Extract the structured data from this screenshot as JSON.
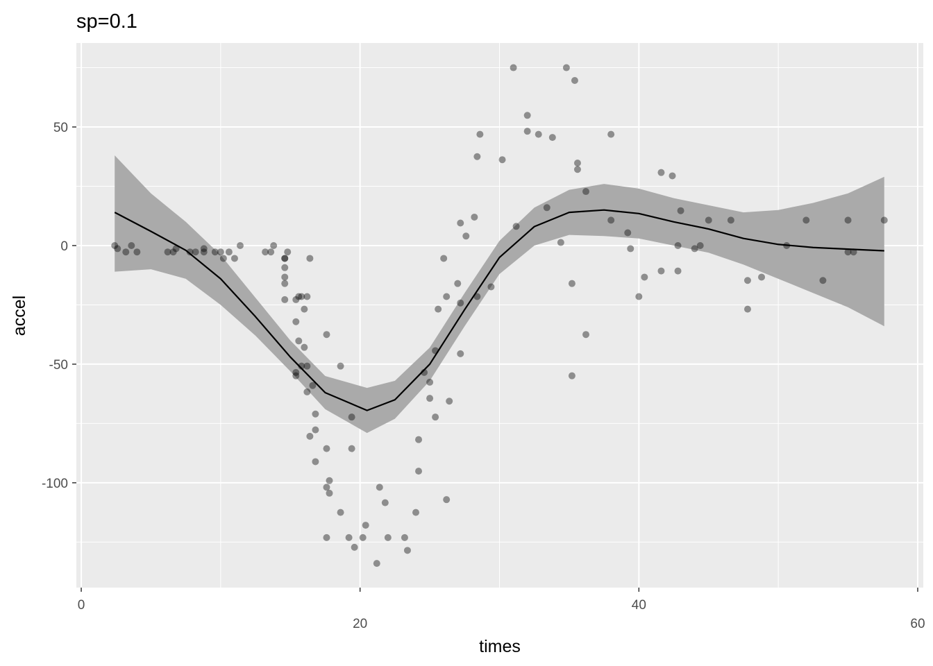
{
  "chart_data": {
    "type": "scatter",
    "title": "sp=0.1",
    "xlabel": "times",
    "ylabel": "accel",
    "xlim": [
      -0.35,
      60.4
    ],
    "ylim": [
      -144.2,
      85.4
    ],
    "xticks": [
      0,
      20,
      40,
      60
    ],
    "yticks": [
      -100,
      -50,
      0,
      50
    ],
    "xminor": [
      10,
      30,
      50
    ],
    "yminor": [
      -125,
      -75,
      -25,
      25,
      75
    ],
    "grid": true,
    "x_label_dodge": 2,
    "point_color": "#000000",
    "line_color": "#000000",
    "band_color": "#aaaaaa",
    "x": [
      2.4,
      2.6,
      3.2,
      3.6,
      4.0,
      6.2,
      6.6,
      6.8,
      7.8,
      8.2,
      8.8,
      8.8,
      9.6,
      10.0,
      10.2,
      10.6,
      11.0,
      11.4,
      13.2,
      13.6,
      13.8,
      14.6,
      14.6,
      14.6,
      14.6,
      14.6,
      14.6,
      14.8,
      15.4,
      15.4,
      15.4,
      15.4,
      15.6,
      15.6,
      15.8,
      15.8,
      16.0,
      16.0,
      16.2,
      16.2,
      16.2,
      16.4,
      16.4,
      16.6,
      16.8,
      16.8,
      16.8,
      17.6,
      17.6,
      17.6,
      17.6,
      17.8,
      17.8,
      18.6,
      18.6,
      19.2,
      19.4,
      19.4,
      19.6,
      20.2,
      20.4,
      21.2,
      21.4,
      21.8,
      22.0,
      23.2,
      23.4,
      24.0,
      24.2,
      24.2,
      24.6,
      25.0,
      25.0,
      25.4,
      25.4,
      25.6,
      26.0,
      26.2,
      26.2,
      26.4,
      27.0,
      27.2,
      27.2,
      27.2,
      27.6,
      28.2,
      28.4,
      28.4,
      28.6,
      29.4,
      30.2,
      31.0,
      31.2,
      32.0,
      32.0,
      32.8,
      33.4,
      33.8,
      34.4,
      34.8,
      35.2,
      35.2,
      35.4,
      35.6,
      35.6,
      36.2,
      36.2,
      38.0,
      38.0,
      39.2,
      39.4,
      40.0,
      40.4,
      41.6,
      41.6,
      42.4,
      42.8,
      42.8,
      43.0,
      44.0,
      44.4,
      45.0,
      46.6,
      47.8,
      47.8,
      48.8,
      50.6,
      52.0,
      53.2,
      55.0,
      55.0,
      55.4,
      57.6
    ],
    "values": [
      0,
      -1.3,
      -2.7,
      0,
      -2.7,
      -2.7,
      -2.7,
      -1.3,
      -2.7,
      -2.7,
      -1.3,
      -2.7,
      -2.7,
      -2.7,
      -5.4,
      -2.7,
      -5.4,
      0,
      -2.7,
      -2.7,
      0,
      -13.3,
      -5.4,
      -5.4,
      -9.3,
      -16,
      -22.8,
      -2.7,
      -22.8,
      -32.1,
      -53.5,
      -54.9,
      -40.2,
      -21.5,
      -21.5,
      -50.8,
      -42.9,
      -26.8,
      -21.5,
      -50.8,
      -61.7,
      -5.4,
      -80.4,
      -59,
      -71,
      -91.1,
      -77.7,
      -37.5,
      -85.6,
      -123.1,
      -101.9,
      -99.1,
      -104.4,
      -112.5,
      -50.8,
      -123.1,
      -85.6,
      -72.3,
      -127.2,
      -123.1,
      -117.9,
      -134,
      -101.9,
      -108.4,
      -123.1,
      -123.1,
      -128.5,
      -112.5,
      -95.1,
      -81.8,
      -53.5,
      -64.4,
      -57.6,
      -72.3,
      -44.3,
      -26.8,
      -5.4,
      -107.1,
      -21.5,
      -65.6,
      -16,
      -45.6,
      -24.2,
      9.5,
      4,
      12,
      -21.5,
      37.5,
      46.9,
      -17.4,
      36.2,
      75,
      8.1,
      54.9,
      48.2,
      46.9,
      16,
      45.6,
      1.3,
      75,
      -16,
      -54.9,
      69.6,
      34.8,
      32.1,
      -37.5,
      22.8,
      46.9,
      10.7,
      5.4,
      -1.3,
      -21.5,
      -13.3,
      30.8,
      -10.7,
      29.4,
      0,
      -10.7,
      14.7,
      -1.3,
      0,
      10.7,
      10.7,
      -26.8,
      -14.7,
      -13.3,
      0,
      10.7,
      -14.7,
      -2.7,
      10.7,
      -2.7,
      10.7
    ],
    "smooth": {
      "x": [
        2.4,
        5,
        7.5,
        10,
        12.5,
        15,
        17.5,
        20.5,
        22.5,
        25,
        27.5,
        30,
        32.5,
        35,
        37.5,
        40,
        42.5,
        45,
        47.5,
        50,
        52.5,
        55,
        57.6
      ],
      "values": [
        14,
        6,
        -2,
        -14,
        -30,
        -47,
        -62,
        -69.5,
        -65,
        -50,
        -27,
        -5,
        8,
        14,
        15,
        13.5,
        10,
        7,
        3,
        0.5,
        -0.8,
        -1.5,
        -2.2
      ],
      "lower": [
        -11,
        -10,
        -14,
        -25,
        -38,
        -53,
        -69,
        -79,
        -73,
        -57,
        -34,
        -12,
        0,
        4.5,
        4,
        3,
        0,
        -3,
        -8,
        -14,
        -20,
        -26,
        -34
      ],
      "upper": [
        38,
        22,
        10,
        -4,
        -22,
        -40,
        -55,
        -60,
        -57,
        -43,
        -20,
        2,
        16,
        23.5,
        26,
        24,
        20,
        17,
        14,
        15,
        18,
        22,
        29
      ]
    }
  }
}
